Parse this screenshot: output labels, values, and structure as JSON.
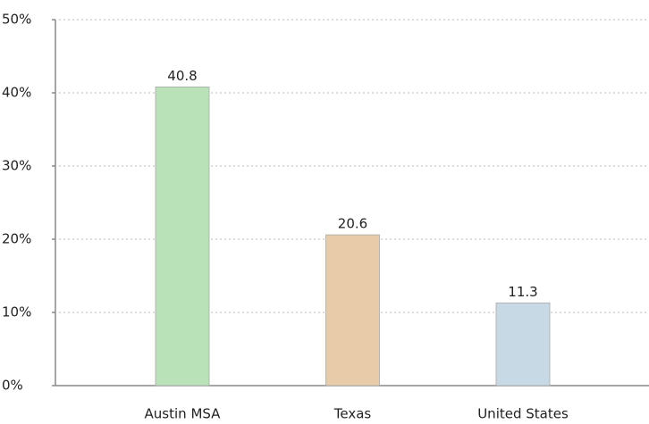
{
  "chart_data": {
    "type": "bar",
    "categories": [
      "Austin MSA",
      "Texas",
      "United States"
    ],
    "values": [
      40.8,
      20.6,
      11.3
    ],
    "colors": [
      "#b9e2b9",
      "#e8cba9",
      "#c6d9e4"
    ],
    "ylim": [
      0,
      50
    ],
    "yticks": [
      {
        "value": 0,
        "label": "0%"
      },
      {
        "value": 10,
        "label": "10%"
      },
      {
        "value": 20,
        "label": "20%"
      },
      {
        "value": 30,
        "label": "30%"
      },
      {
        "value": 40,
        "label": "40%"
      },
      {
        "value": 50,
        "label": "50%"
      }
    ],
    "grid": true
  }
}
